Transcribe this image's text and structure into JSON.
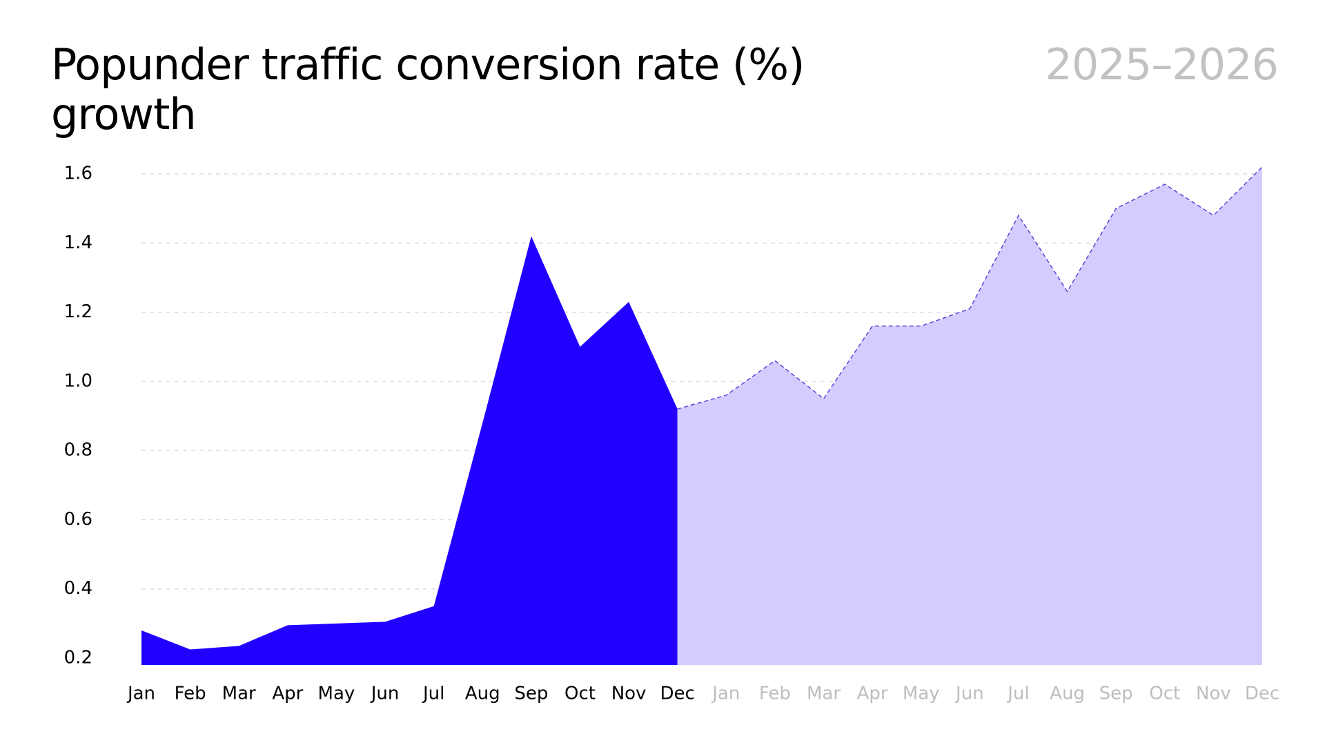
{
  "chart_data": {
    "type": "area",
    "title": "Popunder traffic conversion rate (%) growth",
    "subtitle": "2025–2026",
    "categories": [
      "Jan",
      "Feb",
      "Mar",
      "Apr",
      "May",
      "Jun",
      "Jul",
      "Aug",
      "Sep",
      "Oct",
      "Nov",
      "Dec",
      "Jan",
      "Feb",
      "Mar",
      "Apr",
      "May",
      "Jun",
      "Jul",
      "Aug",
      "Sep",
      "Oct",
      "Nov",
      "Dec"
    ],
    "series": [
      {
        "name": "2025",
        "color": "#2200ff",
        "values": [
          0.28,
          0.225,
          0.235,
          0.295,
          0.3,
          0.305,
          0.35,
          0.88,
          1.42,
          1.1,
          1.23,
          0.92,
          null,
          null,
          null,
          null,
          null,
          null,
          null,
          null,
          null,
          null,
          null,
          null
        ]
      },
      {
        "name": "2026",
        "color": "#d3cdfd",
        "line_color": "#5b44d8",
        "dashed": true,
        "values": [
          null,
          null,
          null,
          null,
          null,
          null,
          null,
          null,
          null,
          null,
          null,
          0.92,
          0.96,
          1.06,
          0.95,
          1.16,
          1.16,
          1.21,
          1.48,
          1.26,
          1.5,
          1.57,
          1.48,
          1.62
        ]
      }
    ],
    "ylim": [
      0.18,
      1.65
    ],
    "yticks": [
      {
        "value": 0.2,
        "label": "0.2"
      },
      {
        "value": 0.4,
        "label": "0.4"
      },
      {
        "value": 0.6,
        "label": "0.6"
      },
      {
        "value": 0.8,
        "label": "0.8"
      },
      {
        "value": 1.0,
        "label": "1.0"
      },
      {
        "value": 1.2,
        "label": "1.2"
      },
      {
        "value": 1.4,
        "label": "1.4"
      },
      {
        "value": 1.6,
        "label": "1.6"
      }
    ],
    "grid": true
  }
}
